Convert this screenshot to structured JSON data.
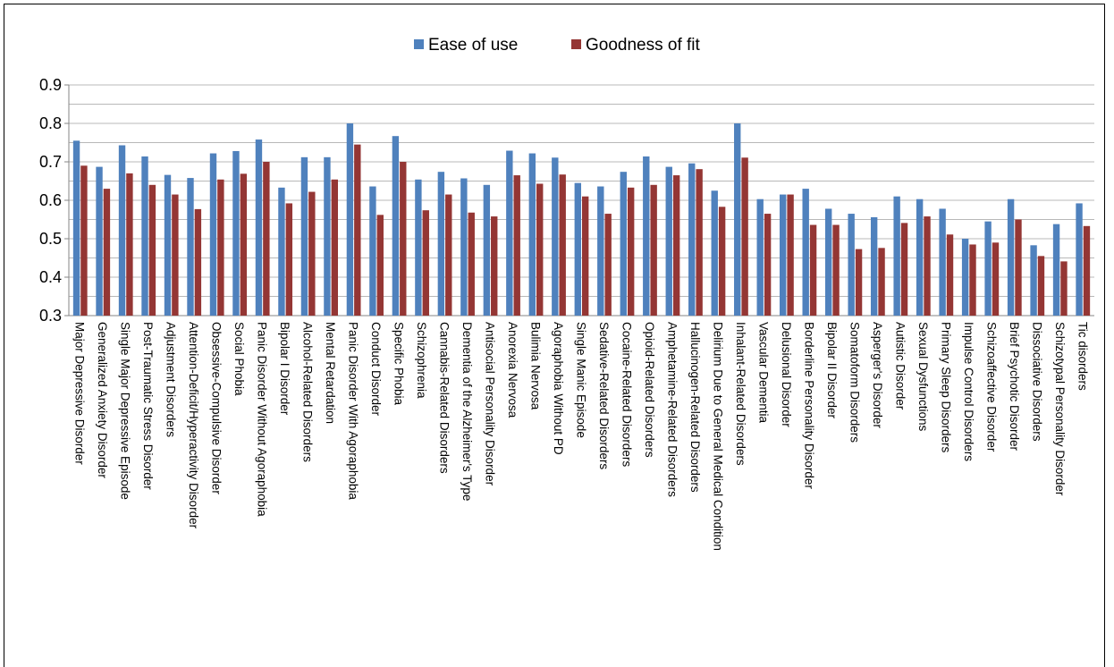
{
  "chart_data": {
    "type": "bar",
    "title": "",
    "xlabel": "",
    "ylabel": "",
    "ylim": [
      0.3,
      0.9
    ],
    "yticks": [
      "0.3",
      "0.4",
      "0.5",
      "0.6",
      "0.7",
      "0.8",
      "0.9"
    ],
    "grid": true,
    "legend_position": "top",
    "colors": {
      "Ease of use": "#4F81BD",
      "Goodness of fit": "#943634"
    },
    "categories": [
      "Major Depressive Disorder",
      "Generalized Anxiety Disorder",
      "Single Major Depressive Episode",
      "Post-Traumatic Stress Disorder",
      "Adjustment Disorders",
      "Attention-Deficit/Hyperactivity Disorder",
      "Obsessive-Compulsive Disorder",
      "Social Phobia",
      "Panic Disorder Without Agoraphobia",
      "Bipolar I Disorder",
      "Alcohol-Related Disorders",
      "Mental Retardation",
      "Panic Disorder With Agoraphobia",
      "Conduct Disorder",
      "Specific Phobia",
      "Schizophrenia",
      "Cannabis-Related Disorders",
      "Dementia of the Alzheimer's Type",
      "Antisocial Personality Disorder",
      "Anorexia Nervosa",
      "Bulimia Nervosa",
      "Agoraphobia Without PD",
      "Single Manic Episode",
      "Sedative-Related Disorders",
      "Cocaine-Related Disorders",
      "Opioid-Related Disorders",
      "Amphetamine-Related Disorders",
      "Hallucinogen-Related Disorders",
      "Delirium Due to General Medical Condition",
      "Inhalant-Related Disorders",
      "Vascular Dementia",
      "Delusional Disorder",
      "Borderline Personality Disorder",
      "Bipolar II Disorder",
      "Somatoform Disorders",
      "Asperger's Disorder",
      "Autistic Disorder",
      "Sexual Dysfunctions",
      "Primary Sleep Disorders",
      "Impulse Control Disorders",
      "Schizoaffective Disorder",
      "Brief Psychotic Disorder",
      "Dissociative Disorders",
      "Schizotypal Personality Disorder",
      "Tic disorders"
    ],
    "series": [
      {
        "name": "Ease of use",
        "values": [
          0.755,
          0.687,
          0.743,
          0.714,
          0.666,
          0.658,
          0.722,
          0.728,
          0.758,
          0.633,
          0.712,
          0.712,
          0.8,
          0.636,
          0.767,
          0.654,
          0.674,
          0.657,
          0.64,
          0.729,
          0.722,
          0.711,
          0.645,
          0.636,
          0.674,
          0.714,
          0.687,
          0.696,
          0.625,
          0.8,
          0.603,
          0.615,
          0.63,
          0.578,
          0.565,
          0.556,
          0.61,
          0.603,
          0.578,
          0.5,
          0.545,
          0.603,
          0.483,
          0.538,
          0.592
        ]
      },
      {
        "name": "Goodness of fit",
        "values": [
          0.69,
          0.63,
          0.67,
          0.64,
          0.615,
          0.577,
          0.654,
          0.669,
          0.7,
          0.592,
          0.622,
          0.654,
          0.745,
          0.562,
          0.7,
          0.574,
          0.615,
          0.568,
          0.558,
          0.665,
          0.643,
          0.667,
          0.61,
          0.565,
          0.633,
          0.64,
          0.665,
          0.681,
          0.583,
          0.711,
          0.565,
          0.615,
          0.536,
          0.536,
          0.473,
          0.476,
          0.541,
          0.558,
          0.511,
          0.485,
          0.49,
          0.55,
          0.455,
          0.441,
          0.533
        ]
      }
    ]
  }
}
